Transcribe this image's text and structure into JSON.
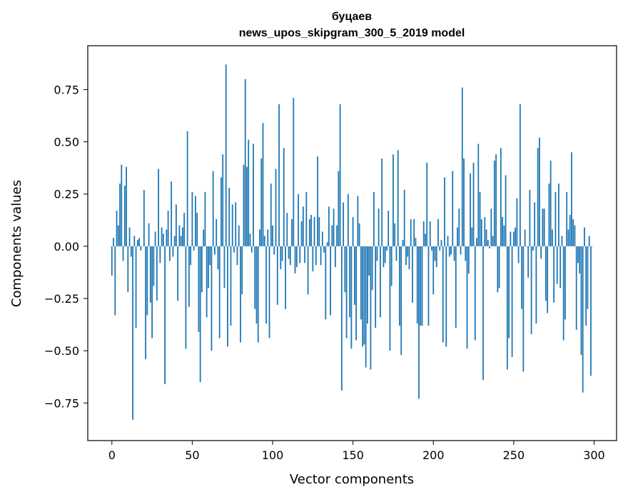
{
  "chart_data": {
    "type": "bar",
    "title_line1": "буцаев",
    "title_line2": "news_upos_skipgram_300_5_2019 model",
    "xlabel": "Vector components",
    "ylabel": "Components values",
    "xlim": [
      -15,
      314
    ],
    "ylim": [
      -0.93,
      0.96
    ],
    "xticks": [
      0,
      50,
      100,
      150,
      200,
      250,
      300
    ],
    "xtick_labels": [
      "0",
      "50",
      "100",
      "150",
      "200",
      "250",
      "300"
    ],
    "yticks": [
      -0.75,
      -0.5,
      -0.25,
      0.0,
      0.25,
      0.5,
      0.75
    ],
    "ytick_labels": [
      "−0.75",
      "−0.50",
      "−0.25",
      "0.00",
      "0.25",
      "0.50",
      "0.75"
    ],
    "bar_color": "#1f77b4",
    "grid": false,
    "legend": "none",
    "x": "0..299 (component index)",
    "values": [
      -0.14,
      0.04,
      -0.33,
      0.17,
      0.1,
      0.3,
      0.39,
      -0.07,
      0.29,
      0.38,
      -0.22,
      0.09,
      -0.05,
      -0.83,
      0.05,
      -0.39,
      0.03,
      0.04,
      -0.02,
      0.0,
      0.27,
      -0.54,
      -0.33,
      0.11,
      -0.27,
      -0.44,
      -0.19,
      0.07,
      -0.26,
      0.37,
      -0.08,
      0.09,
      0.06,
      -0.66,
      0.08,
      0.17,
      -0.07,
      0.31,
      -0.05,
      0.05,
      0.2,
      -0.26,
      0.1,
      0.05,
      0.09,
      0.16,
      -0.49,
      0.55,
      -0.29,
      -0.09,
      0.26,
      -0.02,
      0.24,
      0.16,
      -0.41,
      -0.65,
      -0.22,
      0.08,
      0.26,
      -0.34,
      -0.2,
      -0.09,
      -0.5,
      0.36,
      -0.04,
      0.13,
      -0.11,
      -0.44,
      0.33,
      0.44,
      -0.2,
      0.87,
      -0.48,
      0.28,
      -0.38,
      0.2,
      -0.03,
      0.21,
      -0.09,
      0.1,
      -0.46,
      -0.23,
      0.39,
      0.8,
      0.38,
      0.51,
      0.06,
      -0.03,
      0.49,
      -0.3,
      -0.37,
      -0.46,
      0.08,
      0.42,
      0.59,
      0.05,
      -0.37,
      0.08,
      -0.44,
      0.3,
      0.1,
      -0.04,
      0.37,
      -0.28,
      0.68,
      -0.11,
      -0.07,
      0.47,
      -0.3,
      0.16,
      -0.06,
      -0.09,
      0.13,
      0.71,
      -0.13,
      -0.1,
      0.25,
      -0.08,
      0.12,
      0.19,
      -0.08,
      0.26,
      -0.23,
      0.13,
      0.15,
      -0.12,
      0.14,
      -0.09,
      0.43,
      0.14,
      -0.09,
      0.07,
      -0.03,
      -0.35,
      0.02,
      0.19,
      -0.33,
      0.1,
      0.18,
      -0.1,
      0.1,
      0.36,
      0.68,
      -0.69,
      0.21,
      -0.22,
      -0.44,
      0.25,
      -0.34,
      -0.49,
      0.14,
      -0.28,
      -0.45,
      0.24,
      0.11,
      -0.35,
      -0.48,
      -0.47,
      -0.58,
      -0.37,
      -0.14,
      -0.59,
      -0.21,
      0.26,
      -0.39,
      -0.07,
      0.18,
      -0.34,
      0.42,
      -0.1,
      -0.08,
      -0.02,
      0.17,
      -0.5,
      -0.19,
      0.44,
      0.11,
      -0.07,
      0.46,
      -0.38,
      -0.52,
      0.03,
      0.27,
      -0.09,
      -0.05,
      -0.11,
      0.13,
      -0.27,
      0.13,
      0.04,
      -0.37,
      -0.73,
      -0.38,
      -0.38,
      0.12,
      0.06,
      0.4,
      -0.38,
      0.12,
      -0.02,
      -0.23,
      -0.07,
      -0.1,
      0.13,
      -0.02,
      0.03,
      -0.46,
      0.33,
      -0.48,
      0.05,
      -0.05,
      -0.04,
      0.36,
      -0.07,
      -0.39,
      0.09,
      0.18,
      -0.04,
      0.76,
      0.42,
      -0.07,
      -0.49,
      -0.13,
      0.35,
      0.09,
      0.4,
      -0.45,
      0.04,
      0.49,
      0.26,
      0.13,
      -0.64,
      0.14,
      0.08,
      0.03,
      -0.01,
      0.18,
      0.05,
      0.41,
      0.44,
      -0.22,
      -0.2,
      0.47,
      0.14,
      0.1,
      0.34,
      -0.59,
      -0.44,
      0.07,
      -0.53,
      0.07,
      0.09,
      0.23,
      -0.08,
      0.68,
      -0.3,
      -0.6,
      0.08,
      0.0,
      -0.15,
      0.27,
      -0.42,
      -0.02,
      0.21,
      -0.37,
      0.47,
      0.52,
      -0.06,
      0.18,
      0.18,
      -0.26,
      -0.32,
      0.3,
      0.41,
      0.08,
      -0.27,
      0.26,
      -0.18,
      0.3,
      -0.2,
      0.05,
      -0.45,
      -0.35,
      0.26,
      0.08,
      0.15,
      0.45,
      0.13,
      0.1,
      -0.4,
      -0.08,
      -0.13,
      -0.52,
      -0.7,
      0.09,
      -0.38,
      -0.3,
      0.05,
      -0.62,
      0.0
    ]
  }
}
